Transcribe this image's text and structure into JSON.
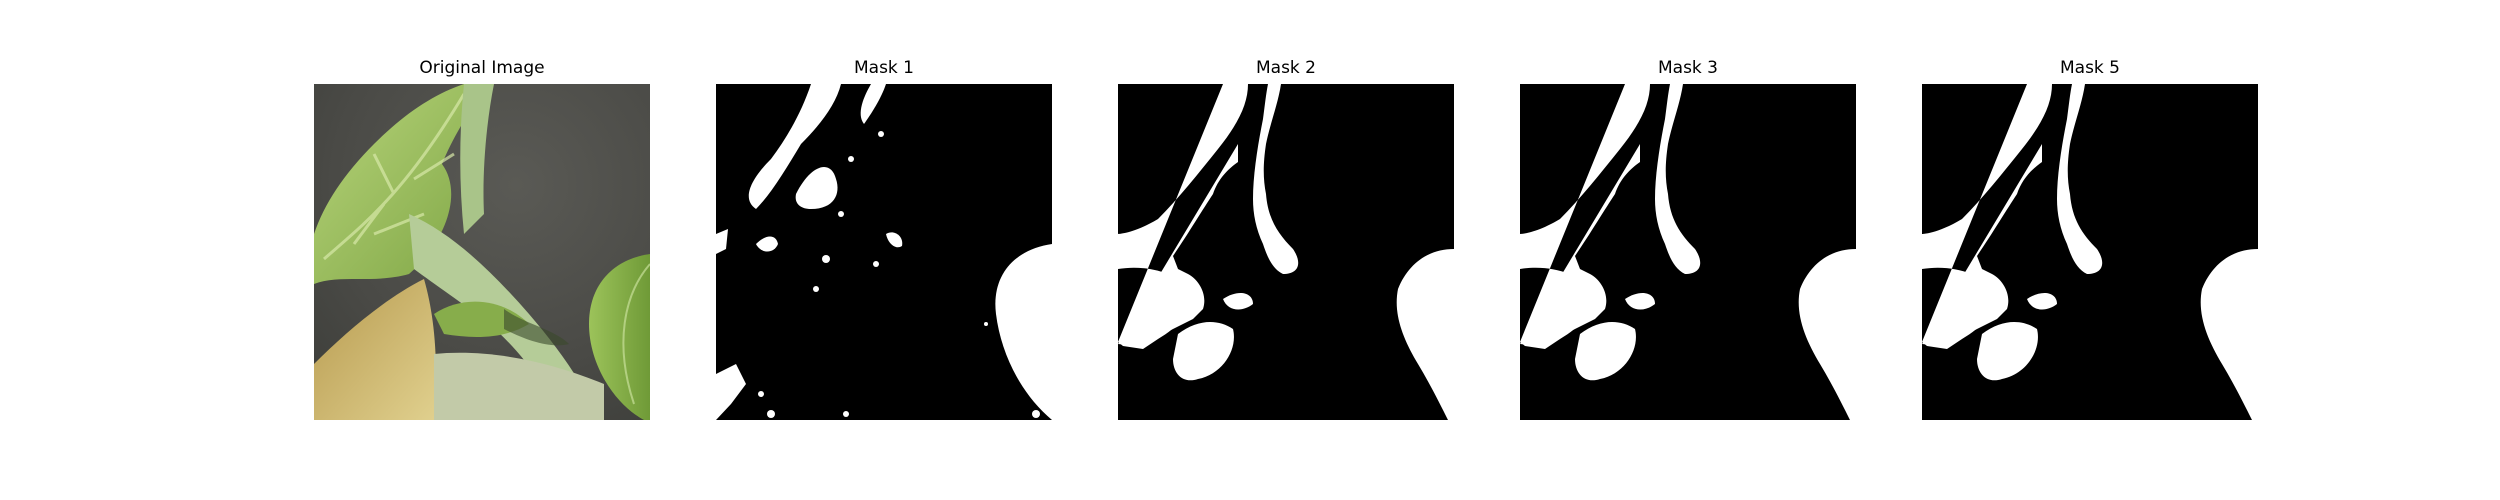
{
  "panels": [
    {
      "title": "Original Image",
      "kind": "photo"
    },
    {
      "title": "Mask 1",
      "kind": "mask-noisy"
    },
    {
      "title": "Mask 2",
      "kind": "mask"
    },
    {
      "title": "Mask 3",
      "kind": "mask"
    },
    {
      "title": "Mask 5",
      "kind": "mask"
    }
  ],
  "colors": {
    "mask_background": "#000000",
    "mask_foreground": "#ffffff",
    "photo_background": "#4a4a46",
    "leaf_light": "#a9c96a",
    "leaf_mid": "#86ad4b",
    "leaf_dark": "#5e8a2e",
    "stem": "#b9cf9c",
    "dry_leaf": "#c9b46e"
  }
}
